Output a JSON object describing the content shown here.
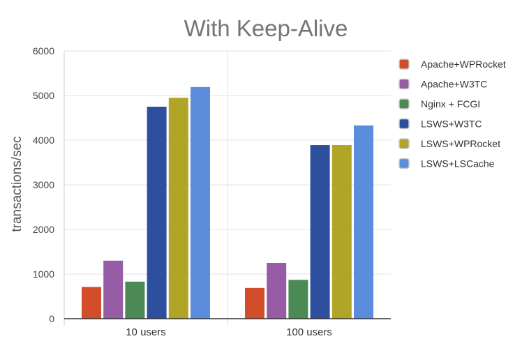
{
  "chart_data": {
    "type": "bar",
    "title": "With Keep-Alive",
    "xlabel": "",
    "ylabel": "transactions/sec",
    "categories": [
      "10 users",
      "100 users"
    ],
    "ylim": [
      0,
      6000
    ],
    "yticks": [
      0,
      1000,
      2000,
      3000,
      4000,
      5000,
      6000
    ],
    "grid": true,
    "legend_position": "right",
    "series": [
      {
        "name": "Apache+WPRocket",
        "color": "#d24e2a",
        "values": [
          710,
          690
        ]
      },
      {
        "name": "Apache+W3TC",
        "color": "#965ca6",
        "values": [
          1300,
          1250
        ]
      },
      {
        "name": "Nginx + FCGI",
        "color": "#4b8a55",
        "values": [
          830,
          870
        ]
      },
      {
        "name": "LSWS+W3TC",
        "color": "#2e4f9e",
        "values": [
          4750,
          3890
        ]
      },
      {
        "name": "LSWS+WPRocket",
        "color": "#b0a526",
        "values": [
          4950,
          3890
        ]
      },
      {
        "name": "LSWS+LSCache",
        "color": "#5c8ddc",
        "values": [
          5190,
          4330
        ]
      }
    ]
  }
}
